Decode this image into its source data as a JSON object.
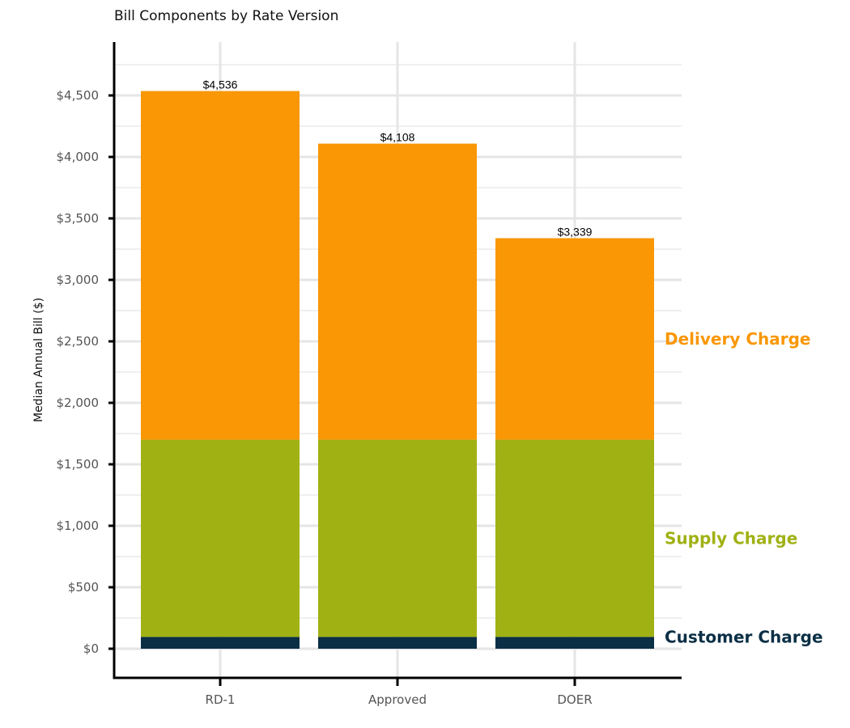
{
  "chart_data": {
    "type": "bar",
    "stacked": true,
    "title": "Bill Components by Rate Version",
    "xlabel": "",
    "ylabel": "Median Annual Bill ($)",
    "ylim": [
      -230,
      5000
    ],
    "yticks": [
      0,
      500,
      1000,
      1500,
      2000,
      2500,
      3000,
      3500,
      4000,
      4500
    ],
    "ytick_labels": [
      "$0",
      "$500",
      "$1,000",
      "$1,500",
      "$2,000",
      "$2,500",
      "$3,000",
      "$3,500",
      "$4,000",
      "$4,500"
    ],
    "categories": [
      "RD-1",
      "Approved",
      "DOER"
    ],
    "series": [
      {
        "name": "Customer Charge",
        "values": [
          96,
          96,
          96
        ],
        "color": "#0b2f45"
      },
      {
        "name": "Supply Charge",
        "values": [
          1604,
          1604,
          1604
        ],
        "color": "#a0b114"
      },
      {
        "name": "Delivery Charge",
        "values": [
          2836,
          2408,
          1639
        ],
        "color": "#f99705"
      }
    ],
    "totals": [
      4536,
      4108,
      3339
    ],
    "total_labels": [
      "$4,536",
      "$4,108",
      "$3,339"
    ],
    "grid": true,
    "legend": "right (direct labels)"
  }
}
